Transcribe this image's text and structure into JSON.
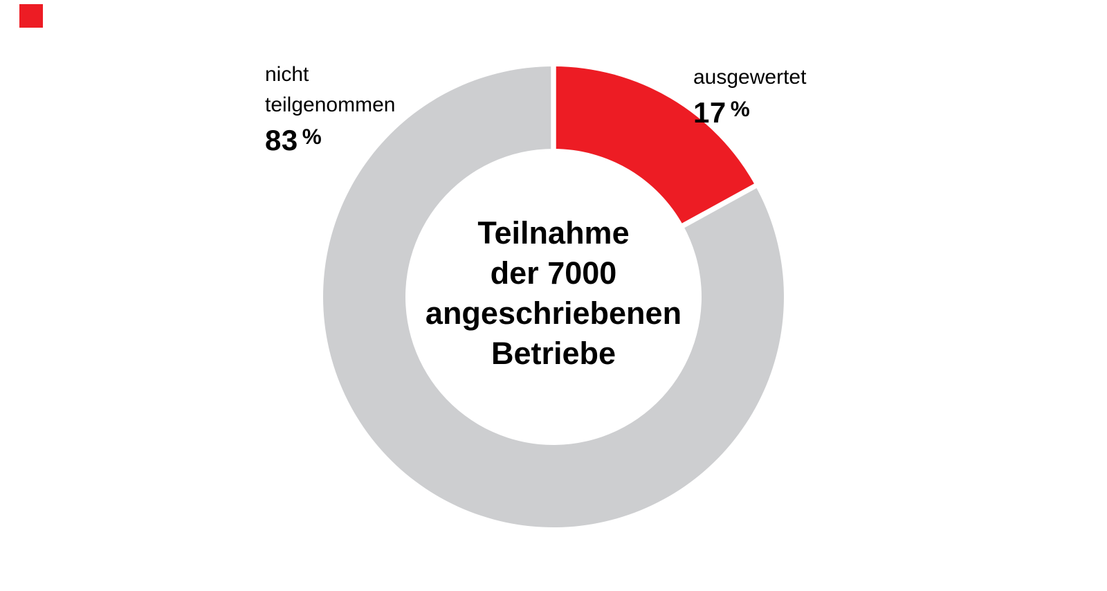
{
  "chart_data": {
    "type": "pie",
    "variant": "donut",
    "title": "Teilnahme der 7000 angeschriebenen Betriebe",
    "categories": [
      "ausgewertet",
      "nicht teilgenommen"
    ],
    "values": [
      17,
      83
    ],
    "unit": "%",
    "colors": [
      "#ed1c24",
      "#cdced0"
    ],
    "start_angle_deg": 0,
    "direction": "clockwise",
    "gap_color": "#ffffff",
    "legend_position": "labels-beside-slices",
    "grid": false
  },
  "center_label": {
    "lines": [
      "Teilnahme",
      "der 7000",
      "angeschriebenen",
      "Betriebe"
    ]
  },
  "label_right": {
    "name": "ausgewertet",
    "value": "17",
    "unit": "%"
  },
  "label_left": {
    "line1": "nicht",
    "line2": "teilgenommen",
    "value": "83",
    "unit": "%"
  },
  "logo": {
    "color": "#ed1c24"
  }
}
